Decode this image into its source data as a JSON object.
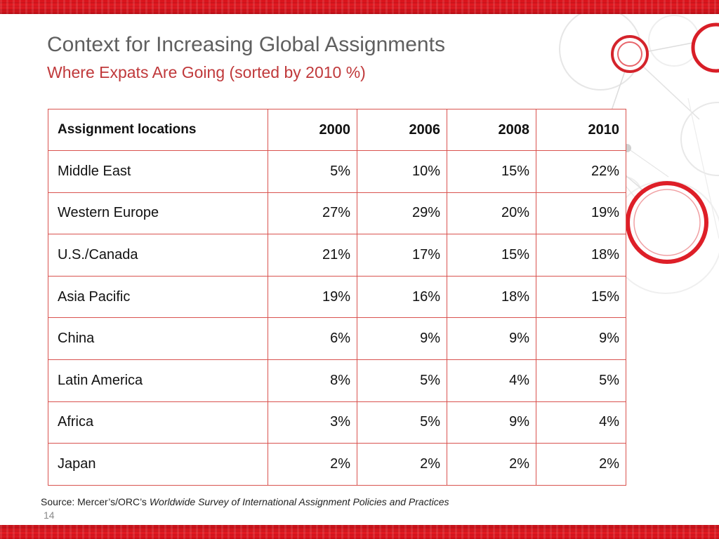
{
  "slide": {
    "title": "Context for Increasing Global Assignments",
    "subtitle": "Where Expats Are Going (sorted by 2010 %)"
  },
  "table": {
    "headers": [
      "Assignment locations",
      "2000",
      "2006",
      "2008",
      "2010"
    ],
    "rows": [
      [
        "Middle East",
        "5%",
        "10%",
        "15%",
        "22%"
      ],
      [
        "Western Europe",
        "27%",
        "29%",
        "20%",
        "19%"
      ],
      [
        "U.S./Canada",
        "21%",
        "17%",
        "15%",
        "18%"
      ],
      [
        "Asia Pacific",
        "19%",
        "16%",
        "18%",
        "15%"
      ],
      [
        "China",
        "6%",
        "9%",
        "9%",
        "9%"
      ],
      [
        "Latin America",
        "8%",
        "5%",
        "4%",
        "5%"
      ],
      [
        "Africa",
        "3%",
        "5%",
        "9%",
        "4%"
      ],
      [
        "Japan",
        "2%",
        "2%",
        "2%",
        "2%"
      ]
    ]
  },
  "footer": {
    "source_prefix": "Source: Mercer’s/ORC’s ",
    "source_title": "Worldwide Survey of International Assignment Policies and Practices",
    "page_number": "14"
  },
  "colors": {
    "accent_red": "#e41b23",
    "border_red": "#d9534f",
    "subtitle_red": "#c0393b",
    "title_gray": "#5f5f5f"
  }
}
